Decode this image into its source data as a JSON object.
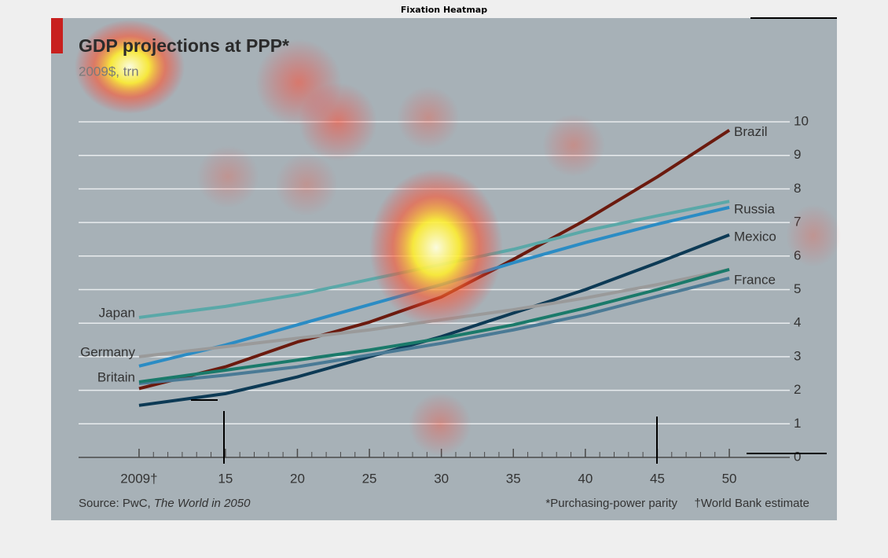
{
  "window_title": "Fixation Heatmap",
  "chart_data": {
    "type": "line",
    "title": "GDP projections at PPP*",
    "subtitle": "2009$, trn",
    "x": [
      2009,
      2015,
      2020,
      2025,
      2030,
      2035,
      2040,
      2045,
      2050
    ],
    "series": [
      {
        "name": "Brazil",
        "color": "#6b1a0e",
        "values": [
          2.05,
          2.7,
          3.44,
          4.03,
          4.78,
          5.9,
          7.07,
          8.36,
          9.75
        ]
      },
      {
        "name": "Russia",
        "color": "#2b8cc4",
        "values": [
          2.72,
          3.35,
          3.95,
          4.55,
          5.15,
          5.8,
          6.4,
          6.95,
          7.45
        ]
      },
      {
        "name": "Mexico",
        "color": "#0d3a55",
        "values": [
          1.55,
          1.9,
          2.4,
          3.0,
          3.6,
          4.3,
          5.0,
          5.8,
          6.63
        ]
      },
      {
        "name": "France",
        "color": "#4a7a95",
        "values": [
          2.2,
          2.45,
          2.7,
          3.05,
          3.4,
          3.8,
          4.25,
          4.8,
          5.34
        ]
      },
      {
        "name": "Japan",
        "color": "#5aa8a8",
        "values": [
          4.17,
          4.5,
          4.85,
          5.3,
          5.75,
          6.2,
          6.75,
          7.2,
          7.63
        ]
      },
      {
        "name": "Germany",
        "color": "#9a9a9a",
        "values": [
          3.0,
          3.3,
          3.55,
          3.8,
          4.1,
          4.4,
          4.75,
          5.15,
          5.6
        ]
      },
      {
        "name": "Britain",
        "color": "#1a7a6a",
        "values": [
          2.25,
          2.6,
          2.9,
          3.2,
          3.55,
          3.95,
          4.45,
          5.0,
          5.6
        ]
      }
    ],
    "xlim": [
      2004.8,
      2054.2
    ],
    "ylim": [
      0,
      10
    ],
    "xticks": [
      {
        "value": 2009,
        "label": "2009†"
      },
      {
        "value": 2015,
        "label": "15"
      },
      {
        "value": 2020,
        "label": "20"
      },
      {
        "value": 2025,
        "label": "25"
      },
      {
        "value": 2030,
        "label": "30"
      },
      {
        "value": 2035,
        "label": "35"
      },
      {
        "value": 2040,
        "label": "40"
      },
      {
        "value": 2045,
        "label": "45"
      },
      {
        "value": 2050,
        "label": "50"
      }
    ],
    "yticks": [
      0,
      1,
      2,
      3,
      4,
      5,
      6,
      7,
      8,
      9,
      10
    ],
    "grid": true,
    "source_prefix": "Source: PwC,",
    "source_work": "The World in 2050",
    "note_1": "*Purchasing-power parity",
    "note_2": "†World Bank estimate"
  }
}
